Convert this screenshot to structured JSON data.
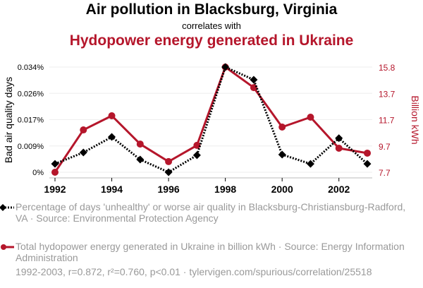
{
  "titles": {
    "main": "Air pollution in Blacksburg, Virginia",
    "connector": "correlates with",
    "secondary": "Hydopower energy generated in Ukraine"
  },
  "legend": {
    "series1": "Percentage of days 'unhealthy' or worse air quality in Blacksburg-Christiansburg-Radford, VA · Source: Environmental Protection Agency",
    "series2": "Total hydopower energy generated in Ukraine in billion kWh · Source: Energy Information Administration"
  },
  "footer": "1992-2003, r=0.872, r²=0.760, p<0.01 · tylervigen.com/spurious/correlation/25518",
  "colors": {
    "series1": "#000000",
    "series2": "#b5162b",
    "grid": "#eeeeee",
    "axis_muted": "#999999"
  },
  "chart_data": {
    "type": "line",
    "title": "Air pollution in Blacksburg, Virginia correlates with Hydopower energy generated in Ukraine",
    "x": [
      1992,
      1993,
      1994,
      1995,
      1996,
      1997,
      1998,
      1999,
      2000,
      2001,
      2002,
      2003
    ],
    "xticks": [
      "1992",
      "1994",
      "1996",
      "1998",
      "2000",
      "2002"
    ],
    "xtick_values": [
      1992,
      1994,
      1996,
      1998,
      2000,
      2002
    ],
    "xlim": [
      1992,
      2003
    ],
    "ylabel_left": "Bad air quality days",
    "ylabel_right": "Billion kWh",
    "yticks_left": [
      "0%",
      "0.009%",
      "0.017%",
      "0.026%",
      "0.034%"
    ],
    "yticks_left_values": [
      0,
      0.0085,
      0.017,
      0.0255,
      0.034
    ],
    "ylim_left": [
      0,
      0.034
    ],
    "yticks_right": [
      "7.7",
      "9.7",
      "11.7",
      "13.7",
      "15.8"
    ],
    "yticks_right_values": [
      7.7,
      9.725,
      11.75,
      13.775,
      15.8
    ],
    "ylim_right": [
      7.7,
      15.8
    ],
    "grid": true,
    "legend_position": "bottom",
    "series": [
      {
        "name": "Percentage of days 'unhealthy' or worse air quality in Blacksburg-Christiansburg-Radford, VA",
        "axis": "left",
        "unit": "%",
        "style": "dotted-diamond",
        "values": [
          0.0027,
          0.0064,
          0.0114,
          0.0041,
          0.0,
          0.0055,
          0.034,
          0.0299,
          0.0057,
          0.0027,
          0.011,
          0.0027
        ]
      },
      {
        "name": "Total hydopower energy generated in Ukraine in billion kWh",
        "axis": "right",
        "unit": "billion kWh",
        "style": "solid-circle",
        "values": [
          7.7,
          10.96,
          12.05,
          9.87,
          8.52,
          9.77,
          15.8,
          14.22,
          11.18,
          11.94,
          9.55,
          9.17
        ]
      }
    ]
  }
}
